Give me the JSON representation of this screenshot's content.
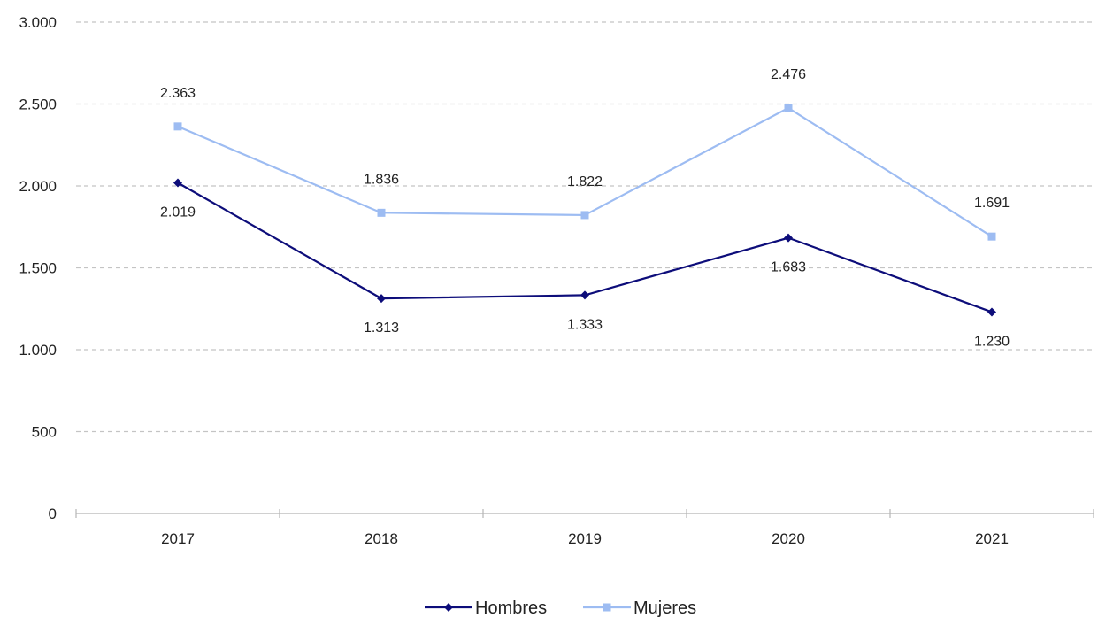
{
  "chart_data": {
    "type": "line",
    "title": "",
    "xlabel": "",
    "ylabel": "",
    "categories": [
      "2017",
      "2018",
      "2019",
      "2020",
      "2021"
    ],
    "ylim": [
      0,
      3000
    ],
    "yticks": [
      0,
      500,
      1000,
      1500,
      2000,
      2500,
      3000
    ],
    "ytick_labels": [
      "0",
      "500",
      "1.000",
      "1.500",
      "2.000",
      "2.500",
      "3.000"
    ],
    "grid": true,
    "legend_position": "bottom",
    "series": [
      {
        "name": "Hombres",
        "color": "#0d0d7a",
        "marker": "diamond",
        "values": [
          2019,
          1313,
          1333,
          1683,
          1230
        ],
        "labels": [
          "2.019",
          "1.313",
          "1.333",
          "1.683",
          "1.230"
        ]
      },
      {
        "name": "Mujeres",
        "color": "#9dbcf2",
        "marker": "square",
        "values": [
          2363,
          1836,
          1822,
          2476,
          1691
        ],
        "labels": [
          "2.363",
          "1.836",
          "1.822",
          "2.476",
          "1.691"
        ]
      }
    ]
  }
}
